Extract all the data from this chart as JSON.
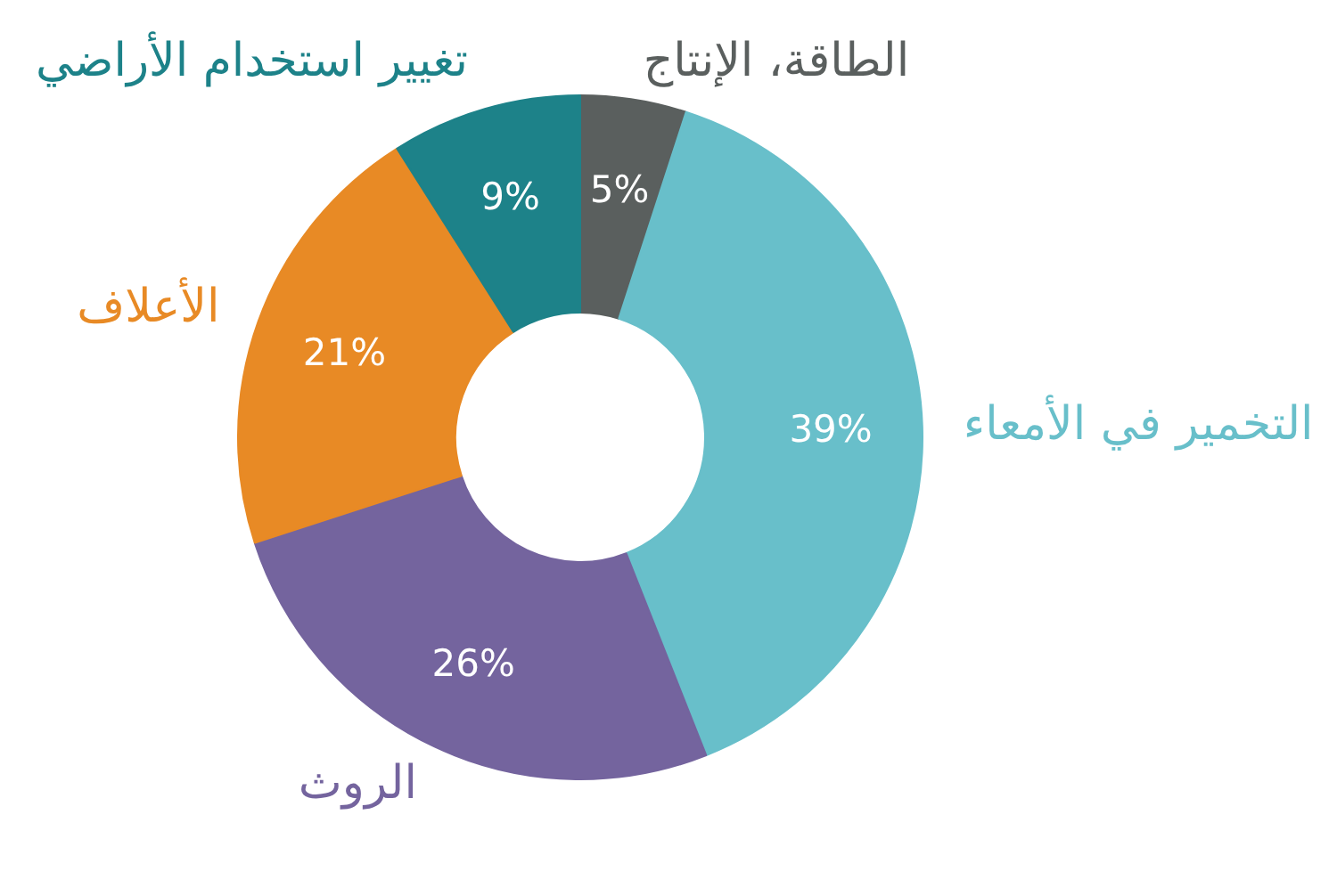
{
  "chart_data": {
    "type": "donut",
    "categories": [
      "الطاقة، الإنتاج",
      "التخمير في الأمعاء",
      "الروث",
      "الأعلاف",
      "تغيير استخدام الأراضي"
    ],
    "values": [
      5,
      39,
      26,
      21,
      9
    ],
    "colors": [
      "#5a5f5e",
      "#68bfca",
      "#74649e",
      "#e88a25",
      "#1d8289"
    ],
    "value_labels": [
      "5%",
      "39%",
      "26%",
      "21%",
      "9%"
    ]
  }
}
